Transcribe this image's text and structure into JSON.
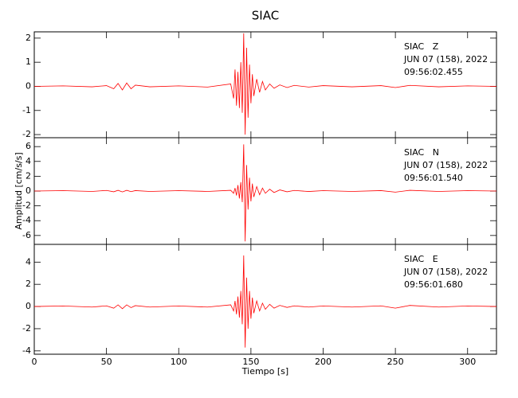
{
  "chart_data": [
    {
      "type": "line",
      "title": "SIAC",
      "color": "#ff0000",
      "annotation": [
        "SIAC   Z",
        "JUN 07 (158), 2022",
        "09:56:02.455"
      ],
      "x": [
        0,
        20,
        40,
        50,
        55,
        58,
        61,
        64,
        67,
        70,
        80,
        100,
        120,
        136,
        138,
        139,
        140,
        141,
        142,
        143,
        144,
        145,
        146,
        147,
        148,
        149,
        150,
        151,
        152,
        154,
        156,
        158,
        160,
        163,
        166,
        170,
        175,
        180,
        190,
        200,
        220,
        240,
        250,
        260,
        280,
        300,
        320
      ],
      "values": [
        0,
        0.02,
        -0.02,
        0.03,
        -0.1,
        0.12,
        -0.15,
        0.14,
        -0.1,
        0.05,
        -0.02,
        0.02,
        -0.03,
        0.1,
        -0.5,
        0.7,
        -0.8,
        0.6,
        -0.9,
        1.0,
        -1.1,
        2.2,
        -2.0,
        1.6,
        -1.3,
        0.9,
        -0.7,
        0.5,
        -0.4,
        0.3,
        -0.25,
        0.2,
        -0.15,
        0.1,
        -0.08,
        0.06,
        -0.05,
        0.04,
        -0.03,
        0.03,
        -0.02,
        0.03,
        -0.05,
        0.04,
        -0.02,
        0.02,
        0
      ],
      "xlim": [
        0,
        320
      ],
      "xticks": [
        0,
        50,
        100,
        150,
        200,
        250,
        300
      ],
      "show_xtick_labels": false,
      "ylim": [
        -2.13,
        2.26
      ],
      "yticks": [
        -2,
        -1,
        0,
        1,
        2
      ]
    },
    {
      "type": "line",
      "ylabel": "Amplitud [cm/s/s]",
      "color": "#ff0000",
      "annotation": [
        "SIAC   N",
        "JUN 07 (158), 2022",
        "09:56:01.540"
      ],
      "x": [
        0,
        20,
        40,
        50,
        55,
        58,
        61,
        64,
        67,
        70,
        80,
        100,
        120,
        136,
        138,
        139,
        140,
        141,
        142,
        143,
        144,
        145,
        146,
        147,
        148,
        149,
        150,
        151,
        152,
        154,
        156,
        158,
        160,
        163,
        166,
        170,
        175,
        180,
        190,
        200,
        220,
        240,
        250,
        260,
        280,
        300,
        320
      ],
      "values": [
        0,
        0.05,
        -0.05,
        0.08,
        -0.1,
        0.1,
        -0.12,
        0.1,
        -0.08,
        0.06,
        -0.05,
        0.05,
        -0.05,
        0.1,
        -0.3,
        0.4,
        -0.6,
        0.8,
        -1.0,
        1.2,
        -1.5,
        6.3,
        -6.8,
        3.5,
        -2.5,
        1.8,
        -1.4,
        1.0,
        -0.8,
        0.6,
        -0.5,
        0.4,
        -0.3,
        0.25,
        -0.2,
        0.15,
        -0.1,
        0.08,
        -0.06,
        0.05,
        -0.05,
        0.06,
        -0.15,
        0.1,
        -0.05,
        0.05,
        0
      ],
      "xlim": [
        0,
        320
      ],
      "xticks": [
        0,
        50,
        100,
        150,
        200,
        250,
        300
      ],
      "show_xtick_labels": false,
      "ylim": [
        -7.2,
        7.2
      ],
      "yticks": [
        -6,
        -4,
        -2,
        0,
        2,
        4,
        6
      ]
    },
    {
      "type": "line",
      "xlabel": "Tiempo [s]",
      "color": "#ff0000",
      "annotation": [
        "SIAC   E",
        "JUN 07 (158), 2022",
        "09:56:01.680"
      ],
      "x": [
        0,
        20,
        40,
        50,
        55,
        58,
        61,
        64,
        67,
        70,
        80,
        100,
        120,
        136,
        138,
        139,
        140,
        141,
        142,
        143,
        144,
        145,
        146,
        147,
        148,
        149,
        150,
        151,
        152,
        154,
        156,
        158,
        160,
        163,
        166,
        170,
        175,
        180,
        190,
        200,
        220,
        240,
        250,
        260,
        280,
        300,
        320
      ],
      "values": [
        0,
        0.05,
        -0.05,
        0.06,
        -0.15,
        0.15,
        -0.2,
        0.15,
        -0.1,
        0.08,
        -0.05,
        0.05,
        -0.05,
        0.15,
        -0.4,
        0.5,
        -0.7,
        0.9,
        -1.0,
        1.4,
        -1.6,
        4.6,
        -3.7,
        2.6,
        -2.0,
        1.4,
        -1.1,
        0.8,
        -0.6,
        0.5,
        -0.4,
        0.3,
        -0.25,
        0.2,
        -0.15,
        0.1,
        -0.08,
        0.06,
        -0.05,
        0.05,
        -0.05,
        0.06,
        -0.15,
        0.1,
        -0.05,
        0.05,
        0
      ],
      "xlim": [
        0,
        320
      ],
      "xticks": [
        0,
        50,
        100,
        150,
        200,
        250,
        300
      ],
      "show_xtick_labels": true,
      "ylim": [
        -4.3,
        5.6
      ],
      "yticks": [
        -4,
        -2,
        0,
        2,
        4
      ]
    }
  ]
}
